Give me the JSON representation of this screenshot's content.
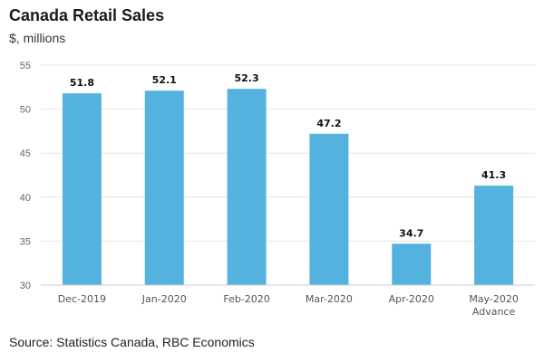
{
  "chart_data": {
    "type": "bar",
    "title": "Canada Retail Sales",
    "subtitle": "$, millions",
    "source": "Source: Statistics Canada, RBC Economics",
    "categories": [
      "Dec-2019",
      "Jan-2020",
      "Feb-2020",
      "Mar-2020",
      "Apr-2020",
      "May-2020"
    ],
    "category_sublabels": [
      "",
      "",
      "",
      "",
      "",
      "Advance"
    ],
    "values": [
      51.8,
      52.1,
      52.3,
      47.2,
      34.7,
      41.3
    ],
    "data_labels": [
      "51.8",
      "52.1",
      "52.3",
      "47.2",
      "34.7",
      "41.3"
    ],
    "xlabel": "",
    "ylabel": "",
    "ylim": [
      30,
      55
    ],
    "yticks": [
      30,
      35,
      40,
      45,
      50,
      55
    ],
    "grid": true,
    "bar_color": "#53b3de"
  }
}
